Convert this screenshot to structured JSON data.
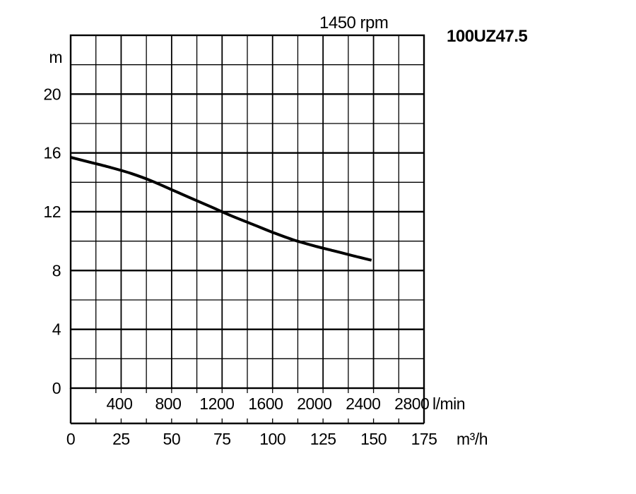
{
  "chart_data": {
    "type": "line",
    "title": "100UZ47.5",
    "subtitle": "1450 rpm",
    "ylabel": "m",
    "xlabel": "m³/h",
    "x2label": "l/min",
    "ylim": [
      0,
      24
    ],
    "xlim": [
      0,
      175
    ],
    "x2lim": [
      0,
      2900
    ],
    "yticks": [
      "0",
      "4",
      "8",
      "12",
      "16",
      "20"
    ],
    "xticks": [
      "0",
      "25",
      "50",
      "75",
      "100",
      "125",
      "150",
      "175"
    ],
    "x2ticks": [
      "400",
      "800",
      "1200",
      "1600",
      "2000",
      "2400",
      "2800"
    ],
    "grid": true,
    "series": [
      {
        "x": [
          0,
          10,
          20,
          30,
          40,
          50,
          60,
          70,
          80,
          90,
          100,
          110,
          120,
          130,
          140,
          149
        ],
        "y": [
          15.7,
          15.35,
          15.0,
          14.6,
          14.1,
          13.5,
          12.9,
          12.3,
          11.7,
          11.15,
          10.6,
          10.1,
          9.7,
          9.35,
          9.0,
          8.7
        ]
      }
    ]
  }
}
